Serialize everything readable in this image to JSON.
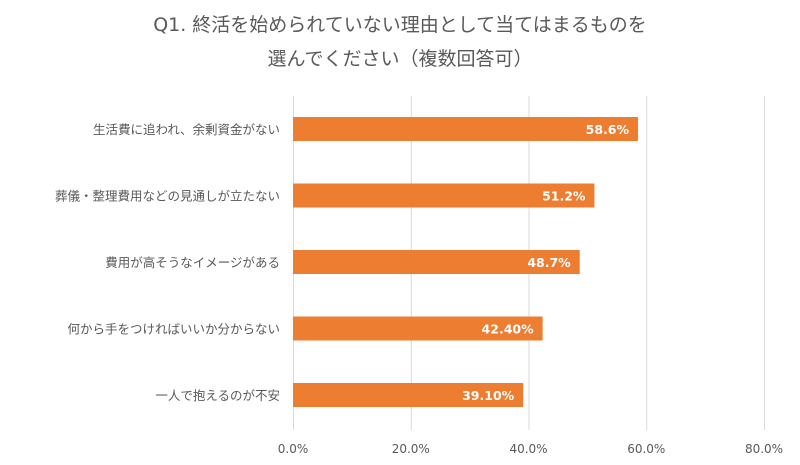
{
  "chart_data": {
    "type": "bar",
    "orientation": "horizontal",
    "title_lines": [
      "Q1. 終活を始められていない理由として当てはまるものを",
      "選んでください（複数回答可）"
    ],
    "categories": [
      "生活費に追われ、余剰資金がない",
      "葬儀・整理費用などの見通しが立たない",
      "費用が高そうなイメージがある",
      "何から手をつければいいか分からない",
      "一人で抱えるのが不安"
    ],
    "values": [
      58.6,
      51.2,
      48.7,
      42.4,
      39.1
    ],
    "data_labels": [
      "58.6%",
      "51.2%",
      "48.7%",
      "42.40%",
      "39.10%"
    ],
    "xlim": [
      0,
      80
    ],
    "x_ticks": [
      0,
      20,
      40,
      60,
      80
    ],
    "x_tick_labels": [
      "0.0%",
      "20.0%",
      "40.0%",
      "60.0%",
      "80.0%"
    ],
    "grid": true,
    "legend": "none",
    "colors": {
      "bar": "#ED7D31",
      "grid": "#D9D9D9",
      "text": "#595959",
      "data_label": "#FFFFFF"
    }
  }
}
